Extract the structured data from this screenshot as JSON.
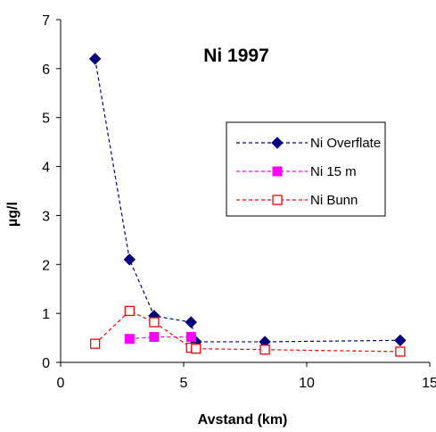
{
  "chart_data": {
    "type": "line",
    "title": "Ni 1997",
    "xlabel": "Avstand (km)",
    "ylabel": "µg/l",
    "xlim": [
      0,
      15
    ],
    "ylim": [
      0,
      7
    ],
    "xticks": [
      0,
      5,
      10,
      15
    ],
    "yticks": [
      0,
      1,
      2,
      3,
      4,
      5,
      6,
      7
    ],
    "grid": false,
    "legend_position": "right",
    "series": [
      {
        "name": "Ni Overflate",
        "color": "#000080",
        "marker": "filled-diamond",
        "x": [
          1.4,
          2.8,
          3.8,
          5.3,
          5.5,
          8.3,
          13.8
        ],
        "y": [
          6.2,
          2.1,
          0.95,
          0.82,
          0.42,
          0.42,
          0.45
        ]
      },
      {
        "name": "Ni 15 m",
        "color": "#ff00ff",
        "marker": "filled-square",
        "x": [
          2.8,
          3.8,
          5.3
        ],
        "y": [
          0.48,
          0.52,
          0.52
        ]
      },
      {
        "name": "Ni Bunn",
        "color": "#ff0000",
        "marker": "open-square",
        "x": [
          1.4,
          2.8,
          3.8,
          5.3,
          5.5,
          8.3,
          13.8
        ],
        "y": [
          0.38,
          1.05,
          0.82,
          0.3,
          0.28,
          0.26,
          0.22
        ]
      }
    ]
  }
}
